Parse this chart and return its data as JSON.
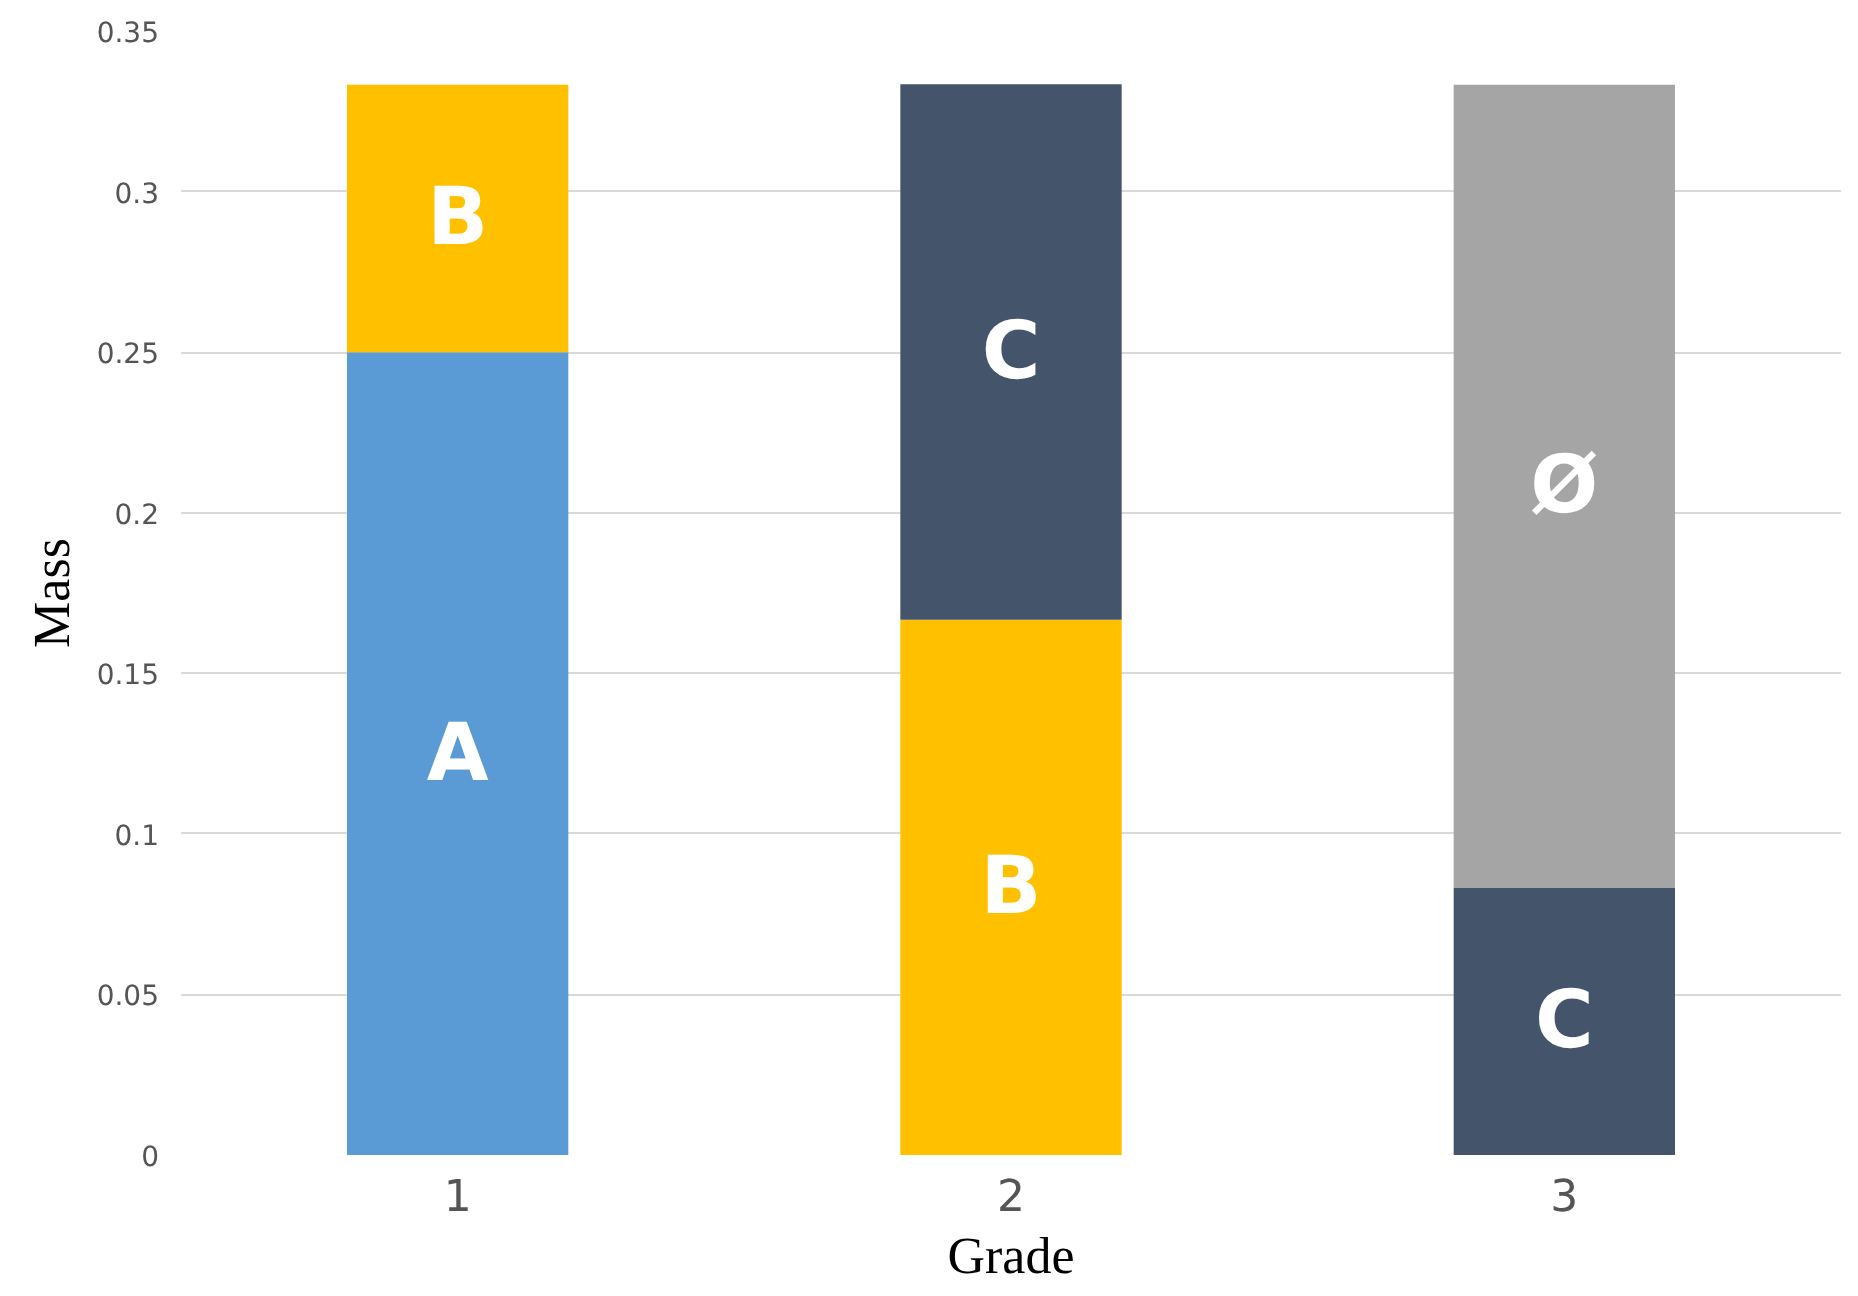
{
  "chart_data": {
    "type": "bar",
    "stacked": true,
    "xlabel": "Grade",
    "ylabel": "Mass",
    "categories": [
      "1",
      "2",
      "3"
    ],
    "series": [
      {
        "name": "A",
        "color": "#5b9bd5",
        "values": [
          0.25,
          null,
          null
        ]
      },
      {
        "name": "B",
        "color": "#ffc000",
        "values": [
          0.0833,
          0.1667,
          null
        ]
      },
      {
        "name": "C",
        "color": "#44546a",
        "values": [
          null,
          0.1667,
          0.0833
        ]
      },
      {
        "name": "Ø",
        "color": "#a5a5a5",
        "values": [
          null,
          null,
          0.25
        ]
      }
    ],
    "ylim": [
      0,
      0.35
    ],
    "yticks": [
      0,
      0.05,
      0.1,
      0.15,
      0.2,
      0.25,
      0.3,
      0.35
    ],
    "grid": "y"
  }
}
